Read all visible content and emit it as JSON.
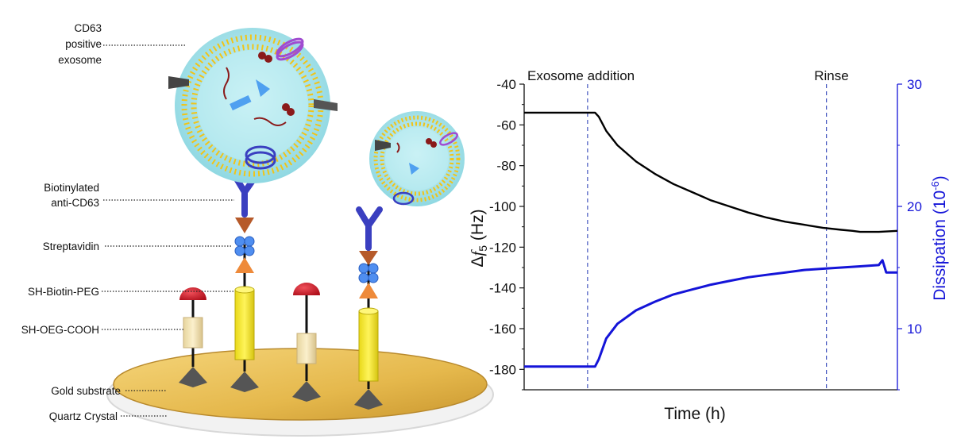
{
  "diagram": {
    "labels": {
      "exosome_line1": "CD63",
      "exosome_line2": "positive",
      "exosome_line3": "exosome",
      "antibody_line1": "Biotinylated",
      "antibody_line2": "anti-CD63",
      "streptavidin": "Streptavidin",
      "biotin_peg": "SH-Biotin-PEG",
      "oeg_cooh": "SH-OEG-COOH",
      "gold": "Gold substrate",
      "quartz": "Quartz Crystal"
    }
  },
  "colors": {
    "frequency_trace": "#000000",
    "dissipation_trace": "#1414d8",
    "marker_line": "#1a2fb0",
    "gold": "#e9c35b",
    "exosome": "#a8e4ea",
    "lipid_head": "#f0c419"
  },
  "chart_data": {
    "type": "line",
    "xlabel": "Time (h)",
    "ylabel_left_prefix": "Δ",
    "ylabel_left_var": "f",
    "ylabel_left_sub": "5",
    "ylabel_left_unit": " (Hz)",
    "ylabel_right_base": "Dissipation (10",
    "ylabel_right_exp": "-6",
    "ylabel_right_close": ")",
    "ylim_left": [
      -190,
      -40
    ],
    "ylim_right": [
      5,
      30
    ],
    "xlim": [
      0,
      1
    ],
    "yticks_left": [
      "-40",
      "-60",
      "-80",
      "-100",
      "-120",
      "-140",
      "-160",
      "-180"
    ],
    "yticks_right": [
      "30",
      "20",
      "10"
    ],
    "x_tick_labels": false,
    "annotations": [
      {
        "text": "Exosome addition",
        "x": 0.17
      },
      {
        "text": "Rinse",
        "x": 0.81
      }
    ],
    "series": [
      {
        "axis": "left",
        "x": [
          0,
          0.05,
          0.1,
          0.15,
          0.19,
          0.2,
          0.22,
          0.25,
          0.3,
          0.35,
          0.4,
          0.45,
          0.5,
          0.55,
          0.6,
          0.65,
          0.7,
          0.75,
          0.8,
          0.85,
          0.88,
          0.9,
          0.95,
          1.0
        ],
        "y": [
          -54,
          -54,
          -54,
          -54,
          -54,
          -56,
          -63,
          -70,
          -78,
          -84,
          -89,
          -93,
          -97,
          -100,
          -103,
          -105.5,
          -107.5,
          -109,
          -110.5,
          -111.5,
          -112,
          -112.5,
          -112.5,
          -112
        ]
      },
      {
        "axis": "right",
        "x": [
          0,
          0.05,
          0.1,
          0.15,
          0.19,
          0.2,
          0.22,
          0.25,
          0.3,
          0.35,
          0.4,
          0.45,
          0.5,
          0.55,
          0.6,
          0.65,
          0.7,
          0.75,
          0.8,
          0.85,
          0.9,
          0.95,
          0.96,
          0.97,
          1.0
        ],
        "y": [
          6.9,
          6.9,
          6.9,
          6.9,
          6.9,
          7.5,
          9.2,
          10.4,
          11.5,
          12.2,
          12.8,
          13.2,
          13.6,
          13.9,
          14.2,
          14.4,
          14.6,
          14.8,
          14.9,
          15.0,
          15.1,
          15.2,
          15.6,
          14.6,
          14.6
        ]
      }
    ]
  }
}
